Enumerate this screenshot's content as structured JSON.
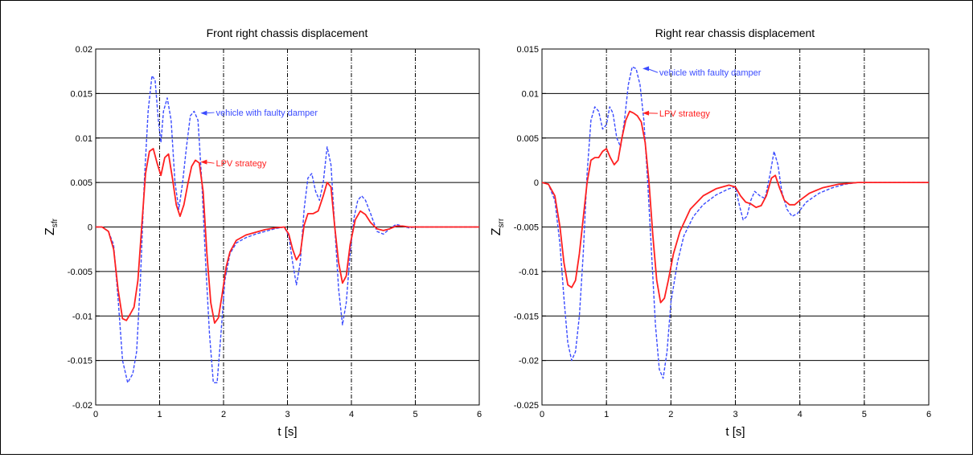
{
  "chart_data": [
    {
      "type": "line",
      "title": "Front right chassis displacement",
      "xlabel": "t [s]",
      "ylabel": "Z",
      "ylabel_sub": "sfr",
      "xlim": [
        0,
        6
      ],
      "ylim": [
        -0.02,
        0.02
      ],
      "xticks": [
        "0",
        "1",
        "2",
        "3",
        "4",
        "5",
        "6"
      ],
      "yticks": [
        "0.02",
        "0.015",
        "0.01",
        "0.005",
        "0",
        "-0.005",
        "-0.01",
        "-0.015",
        "-0.02"
      ],
      "grid": true,
      "colors": {
        "faulty": "#3b4cff",
        "lpv": "#ff2020"
      },
      "series": [
        {
          "name": "vehicle with faulty damper",
          "style": "dashed",
          "x": [
            0,
            0.1,
            0.2,
            0.28,
            0.35,
            0.42,
            0.5,
            0.58,
            0.64,
            0.7,
            0.76,
            0.82,
            0.88,
            0.93,
            0.98,
            1.02,
            1.06,
            1.12,
            1.18,
            1.24,
            1.3,
            1.36,
            1.42,
            1.48,
            1.54,
            1.6,
            1.66,
            1.72,
            1.78,
            1.84,
            1.9,
            1.96,
            2.02,
            2.1,
            2.2,
            2.35,
            2.5,
            2.65,
            2.8,
            2.95,
            3.02,
            3.08,
            3.14,
            3.2,
            3.26,
            3.32,
            3.38,
            3.44,
            3.5,
            3.56,
            3.62,
            3.68,
            3.74,
            3.8,
            3.86,
            3.92,
            3.98,
            4.04,
            4.1,
            4.16,
            4.22,
            4.3,
            4.4,
            4.5,
            4.6,
            4.7,
            4.8,
            4.9,
            5.0,
            5.2,
            5.5,
            6.0
          ],
          "y": [
            0,
            0,
            -0.0005,
            -0.002,
            -0.008,
            -0.015,
            -0.0175,
            -0.0165,
            -0.014,
            -0.006,
            0.005,
            0.013,
            0.017,
            0.0165,
            0.012,
            0.0095,
            0.013,
            0.0145,
            0.012,
            0.005,
            0.002,
            0.005,
            0.009,
            0.0125,
            0.013,
            0.012,
            0.005,
            -0.004,
            -0.012,
            -0.0175,
            -0.0175,
            -0.012,
            -0.006,
            -0.003,
            -0.0018,
            -0.0012,
            -0.0008,
            -0.0005,
            -0.0002,
            0.0,
            -0.001,
            -0.004,
            -0.0065,
            -0.004,
            0.002,
            0.0055,
            0.006,
            0.004,
            0.003,
            0.005,
            0.009,
            0.007,
            0.0,
            -0.007,
            -0.011,
            -0.0085,
            -0.003,
            0.001,
            0.003,
            0.0035,
            0.003,
            0.0015,
            -0.0005,
            -0.0008,
            -0.0002,
            0.0003,
            0.0001,
            -0.0001,
            0,
            0,
            0,
            0
          ]
        },
        {
          "name": "LPV strategy",
          "style": "solid",
          "x": [
            0,
            0.1,
            0.2,
            0.28,
            0.35,
            0.42,
            0.48,
            0.54,
            0.6,
            0.66,
            0.72,
            0.78,
            0.84,
            0.9,
            0.96,
            1.02,
            1.08,
            1.14,
            1.2,
            1.26,
            1.32,
            1.38,
            1.44,
            1.5,
            1.56,
            1.62,
            1.68,
            1.74,
            1.8,
            1.86,
            1.92,
            1.98,
            2.04,
            2.1,
            2.2,
            2.35,
            2.5,
            2.65,
            2.8,
            2.95,
            3.02,
            3.08,
            3.14,
            3.2,
            3.26,
            3.32,
            3.4,
            3.48,
            3.56,
            3.62,
            3.68,
            3.74,
            3.8,
            3.86,
            3.92,
            3.98,
            4.06,
            4.14,
            4.22,
            4.3,
            4.4,
            4.5,
            4.6,
            4.7,
            4.8,
            4.9,
            5.0,
            5.2,
            5.5,
            6.0
          ],
          "y": [
            0,
            0,
            -0.0005,
            -0.0025,
            -0.007,
            -0.0103,
            -0.0105,
            -0.0098,
            -0.009,
            -0.006,
            0.0,
            0.006,
            0.0085,
            0.0088,
            0.0072,
            0.0058,
            0.0078,
            0.0082,
            0.0055,
            0.0025,
            0.0012,
            0.0025,
            0.0048,
            0.0068,
            0.0075,
            0.0072,
            0.004,
            -0.003,
            -0.0085,
            -0.0108,
            -0.0102,
            -0.0075,
            -0.0045,
            -0.0028,
            -0.0015,
            -0.0009,
            -0.0006,
            -0.0003,
            -0.0001,
            0.0,
            -0.0008,
            -0.0025,
            -0.0037,
            -0.003,
            0.0002,
            0.0015,
            0.0015,
            0.0018,
            0.0035,
            0.005,
            0.0045,
            0.0,
            -0.004,
            -0.0063,
            -0.0055,
            -0.002,
            0.0008,
            0.0018,
            0.0014,
            0.0005,
            -0.0002,
            -0.0004,
            -0.0002,
            0.0001,
            0.0001,
            0,
            0,
            0,
            0,
            0
          ]
        }
      ]
    },
    {
      "type": "line",
      "title": "Right rear chassis displacement",
      "xlabel": "t [s]",
      "ylabel": "Z",
      "ylabel_sub": "srr",
      "xlim": [
        0,
        6
      ],
      "ylim": [
        -0.025,
        0.015
      ],
      "xticks": [
        "0",
        "1",
        "2",
        "3",
        "4",
        "5",
        "6"
      ],
      "yticks": [
        "0.015",
        "0.01",
        "0.005",
        "0",
        "-0.005",
        "-0.01",
        "-0.015",
        "-0.02",
        "-0.025"
      ],
      "grid": true,
      "colors": {
        "faulty": "#3b4cff",
        "lpv": "#ff2020"
      },
      "series": [
        {
          "name": "vehicle with faulty damper",
          "style": "dashed",
          "x": [
            0,
            0.1,
            0.2,
            0.28,
            0.34,
            0.4,
            0.46,
            0.52,
            0.58,
            0.64,
            0.7,
            0.76,
            0.82,
            0.88,
            0.94,
            1.0,
            1.05,
            1.1,
            1.16,
            1.22,
            1.28,
            1.34,
            1.4,
            1.46,
            1.52,
            1.58,
            1.64,
            1.7,
            1.76,
            1.82,
            1.88,
            1.94,
            2.0,
            2.1,
            2.2,
            2.35,
            2.5,
            2.7,
            2.9,
            3.0,
            3.06,
            3.12,
            3.18,
            3.24,
            3.3,
            3.38,
            3.46,
            3.54,
            3.6,
            3.66,
            3.72,
            3.8,
            3.88,
            3.96,
            4.1,
            4.3,
            4.5,
            4.7,
            4.9,
            5.0,
            5.3,
            6.0
          ],
          "y": [
            0,
            -0.0002,
            -0.002,
            -0.007,
            -0.013,
            -0.018,
            -0.02,
            -0.019,
            -0.015,
            -0.008,
            0.001,
            0.007,
            0.0085,
            0.008,
            0.006,
            0.0065,
            0.0085,
            0.0078,
            0.005,
            0.004,
            0.007,
            0.011,
            0.013,
            0.0128,
            0.011,
            0.007,
            0.0,
            -0.008,
            -0.016,
            -0.021,
            -0.022,
            -0.019,
            -0.0135,
            -0.009,
            -0.006,
            -0.0038,
            -0.0025,
            -0.0014,
            -0.0007,
            -0.0005,
            -0.0025,
            -0.0042,
            -0.0038,
            -0.002,
            -0.001,
            -0.0015,
            -0.0018,
            0.001,
            0.0035,
            0.002,
            -0.001,
            -0.003,
            -0.0038,
            -0.0035,
            -0.0022,
            -0.0012,
            -0.0006,
            -0.0002,
            0,
            0,
            0,
            0
          ]
        },
        {
          "name": "LPV strategy",
          "style": "solid",
          "x": [
            0,
            0.1,
            0.2,
            0.28,
            0.34,
            0.4,
            0.46,
            0.52,
            0.58,
            0.64,
            0.7,
            0.76,
            0.82,
            0.88,
            0.94,
            1.0,
            1.06,
            1.12,
            1.18,
            1.24,
            1.3,
            1.36,
            1.42,
            1.48,
            1.54,
            1.6,
            1.66,
            1.72,
            1.78,
            1.84,
            1.9,
            1.96,
            2.04,
            2.14,
            2.3,
            2.5,
            2.7,
            2.9,
            3.0,
            3.08,
            3.16,
            3.24,
            3.32,
            3.4,
            3.48,
            3.56,
            3.62,
            3.68,
            3.76,
            3.84,
            3.92,
            4.0,
            4.15,
            4.35,
            4.6,
            4.9,
            5.2,
            5.6,
            6.0
          ],
          "y": [
            0,
            -0.0002,
            -0.0015,
            -0.005,
            -0.009,
            -0.0115,
            -0.0118,
            -0.011,
            -0.008,
            -0.004,
            0.0,
            0.0025,
            0.0028,
            0.0028,
            0.0035,
            0.0038,
            0.0028,
            0.002,
            0.0025,
            0.005,
            0.007,
            0.008,
            0.0078,
            0.0075,
            0.0068,
            0.0045,
            0.0,
            -0.006,
            -0.011,
            -0.0135,
            -0.013,
            -0.011,
            -0.008,
            -0.0055,
            -0.003,
            -0.0015,
            -0.0007,
            -0.0003,
            -0.0005,
            -0.0015,
            -0.0022,
            -0.0024,
            -0.0028,
            -0.0026,
            -0.0015,
            0.0005,
            0.0008,
            -0.0005,
            -0.002,
            -0.0025,
            -0.0025,
            -0.002,
            -0.0012,
            -0.0006,
            -0.0002,
            0,
            0,
            0,
            0
          ]
        }
      ]
    }
  ],
  "annotations": [
    [
      {
        "text": "vehicle with faulty damper",
        "series": 0,
        "x": 1.88,
        "y": 0.0125,
        "ax": 1.64,
        "ay": 0.0128
      },
      {
        "text": "LPV strategy",
        "series": 1,
        "x": 1.88,
        "y": 0.0068,
        "ax": 1.64,
        "ay": 0.0073
      }
    ],
    [
      {
        "text": "vehicle with faulty damper",
        "series": 0,
        "x": 1.82,
        "y": 0.012,
        "ax": 1.56,
        "ay": 0.0128
      },
      {
        "text": "LPV strategy",
        "series": 1,
        "x": 1.82,
        "y": 0.0074,
        "ax": 1.56,
        "ay": 0.0078
      }
    ]
  ]
}
